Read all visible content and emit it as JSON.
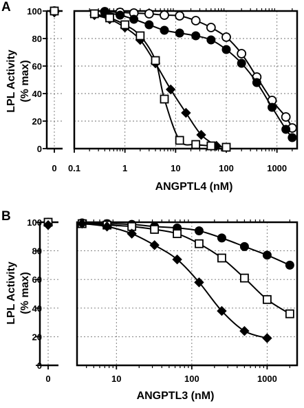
{
  "chart_data": [
    {
      "panel": "A",
      "type": "scatter",
      "xlabel": "ANGPTL4 (nM)",
      "ylabel": [
        "LPL Activity",
        "(% max)"
      ],
      "xscale": "log with broken axis (0 shown separately)",
      "xlim": [
        0.1,
        3000
      ],
      "ylim": [
        0,
        100
      ],
      "grid": true,
      "x_tick_labels": [
        "0",
        "0.1",
        "1",
        "10",
        "100",
        "1000"
      ],
      "y_tick_labels": [
        "0",
        "20",
        "40",
        "60",
        "80",
        "100"
      ],
      "series": [
        {
          "marker": "open-circle",
          "x": [
            0,
            0.4,
            0.8,
            1.5,
            3,
            6,
            12,
            25,
            50,
            100,
            200,
            400,
            800,
            1500,
            2000
          ],
          "y": [
            100,
            99.5,
            99,
            98.5,
            98,
            97,
            96.5,
            93,
            88,
            81,
            69,
            52,
            35,
            23,
            15
          ]
        },
        {
          "marker": "filled-circle",
          "x": [
            0,
            0.4,
            0.8,
            1.5,
            3,
            6,
            12,
            25,
            50,
            100,
            200,
            400,
            800,
            1500,
            2000
          ],
          "y": [
            100,
            99,
            97,
            94,
            90,
            86,
            84,
            82,
            79,
            72,
            62,
            48,
            30,
            14,
            8
          ]
        },
        {
          "marker": "filled-diamond",
          "x": [
            0,
            0.25,
            0.5,
            1,
            2,
            4,
            8,
            16,
            32,
            64
          ],
          "y": [
            99,
            97,
            94,
            88,
            79,
            62,
            43,
            26,
            10,
            2
          ]
        },
        {
          "marker": "open-square",
          "x": [
            0,
            0.25,
            0.5,
            1,
            2,
            4,
            6,
            12,
            25,
            50,
            100
          ],
          "y": [
            100,
            98,
            95,
            90,
            82,
            64,
            36,
            6,
            3,
            2,
            1
          ]
        }
      ]
    },
    {
      "panel": "B",
      "type": "scatter",
      "xlabel": "ANGPTL3 (nM)",
      "ylabel": [
        "LPL Activity",
        "(% max)"
      ],
      "xscale": "log with broken axis (0 shown separately)",
      "xlim": [
        3,
        3000
      ],
      "ylim": [
        0,
        100
      ],
      "grid": true,
      "x_tick_labels": [
        "0",
        "10",
        "100",
        "1000"
      ],
      "y_tick_labels": [
        "0",
        "20",
        "40",
        "60",
        "80",
        "100"
      ],
      "series": [
        {
          "marker": "filled-circle",
          "x": [
            0,
            3.5,
            7.5,
            16,
            32,
            64,
            125,
            250,
            500,
            1000,
            2000
          ],
          "y": [
            100,
            99.5,
            99,
            98.5,
            97,
            96,
            94,
            89,
            83,
            77,
            70
          ]
        },
        {
          "marker": "open-square",
          "x": [
            0,
            3.5,
            7.5,
            16,
            32,
            64,
            125,
            250,
            500,
            1000,
            2000
          ],
          "y": [
            100,
            99,
            98,
            97,
            95,
            92,
            85,
            75,
            61,
            46,
            36
          ]
        },
        {
          "marker": "filled-diamond",
          "x": [
            0,
            3.5,
            7.5,
            16,
            32,
            64,
            125,
            250,
            500,
            1000
          ],
          "y": [
            98,
            99,
            97,
            92,
            84,
            74,
            58,
            38,
            24,
            19
          ]
        }
      ]
    }
  ]
}
